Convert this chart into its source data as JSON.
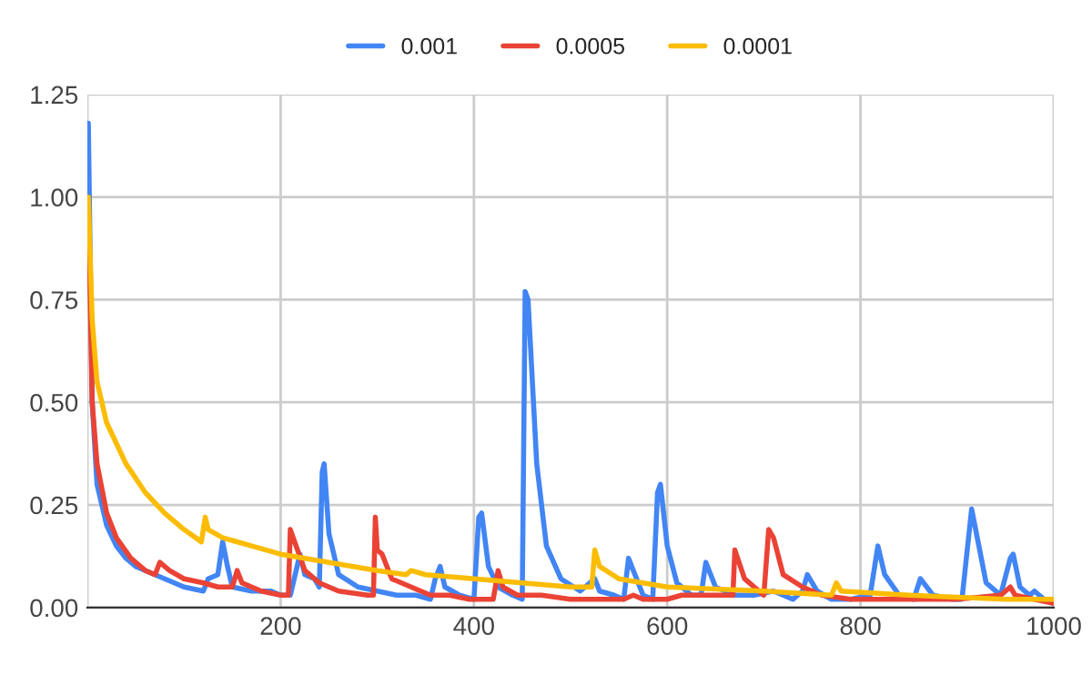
{
  "chart_data": {
    "type": "line",
    "xlim": [
      0,
      1000
    ],
    "ylim": [
      0,
      1.25
    ],
    "xticks": [
      {
        "value": 0,
        "label": null
      },
      200,
      400,
      600,
      800,
      1000
    ],
    "yticks": [
      {
        "value": 0,
        "label": "0.00"
      },
      {
        "value": 0.25,
        "label": "0.25"
      },
      {
        "value": 0.5,
        "label": "0.50"
      },
      {
        "value": 0.75,
        "label": "0.75"
      },
      {
        "value": 1,
        "label": "1.00"
      },
      {
        "value": 1.25,
        "label": "1.25"
      }
    ],
    "grid": true,
    "legend": "top",
    "marker": "none",
    "line_style": "solid",
    "series": [
      {
        "name": "0.001",
        "color": "#4285f4",
        "x": [
          1,
          5,
          10,
          20,
          30,
          40,
          50,
          60,
          80,
          100,
          120,
          125,
          135,
          140,
          145,
          150,
          170,
          190,
          200,
          210,
          220,
          225,
          235,
          240,
          243,
          245,
          250,
          260,
          280,
          300,
          320,
          340,
          355,
          360,
          365,
          370,
          385,
          400,
          405,
          408,
          415,
          425,
          440,
          450,
          453,
          456,
          465,
          475,
          490,
          510,
          525,
          530,
          545,
          555,
          560,
          565,
          575,
          585,
          590,
          593,
          600,
          610,
          625,
          635,
          640,
          650,
          670,
          690,
          710,
          720,
          730,
          740,
          745,
          755,
          770,
          790,
          810,
          818,
          825,
          840,
          855,
          862,
          875,
          895,
          905,
          915,
          920,
          930,
          945,
          955,
          958,
          965,
          975,
          980,
          990,
          1000
        ],
        "values": [
          1.18,
          0.5,
          0.3,
          0.2,
          0.15,
          0.12,
          0.1,
          0.09,
          0.07,
          0.05,
          0.04,
          0.07,
          0.08,
          0.16,
          0.1,
          0.05,
          0.04,
          0.04,
          0.03,
          0.03,
          0.13,
          0.08,
          0.07,
          0.05,
          0.33,
          0.35,
          0.18,
          0.08,
          0.05,
          0.04,
          0.03,
          0.03,
          0.02,
          0.07,
          0.1,
          0.05,
          0.03,
          0.02,
          0.22,
          0.23,
          0.1,
          0.05,
          0.03,
          0.02,
          0.77,
          0.75,
          0.35,
          0.15,
          0.07,
          0.04,
          0.07,
          0.04,
          0.03,
          0.02,
          0.12,
          0.09,
          0.03,
          0.02,
          0.28,
          0.3,
          0.15,
          0.06,
          0.03,
          0.03,
          0.11,
          0.05,
          0.03,
          0.03,
          0.04,
          0.03,
          0.02,
          0.04,
          0.08,
          0.04,
          0.02,
          0.02,
          0.03,
          0.15,
          0.08,
          0.03,
          0.02,
          0.07,
          0.03,
          0.02,
          0.02,
          0.24,
          0.18,
          0.06,
          0.03,
          0.12,
          0.13,
          0.05,
          0.03,
          0.04,
          0.02,
          0.01
        ]
      },
      {
        "name": "0.0005",
        "color": "#ea4335",
        "x": [
          1,
          5,
          10,
          20,
          30,
          45,
          60,
          70,
          75,
          85,
          100,
          120,
          135,
          150,
          155,
          160,
          180,
          200,
          208,
          210,
          213,
          225,
          240,
          260,
          290,
          296,
          298,
          300,
          305,
          315,
          335,
          355,
          375,
          395,
          420,
          425,
          430,
          445,
          470,
          500,
          530,
          555,
          565,
          575,
          600,
          615,
          630,
          668,
          670,
          680,
          700,
          705,
          710,
          720,
          740,
          760,
          790,
          820,
          850,
          900,
          945,
          955,
          960,
          1000
        ],
        "values": [
          1.0,
          0.5,
          0.35,
          0.23,
          0.17,
          0.12,
          0.09,
          0.08,
          0.11,
          0.09,
          0.07,
          0.06,
          0.05,
          0.05,
          0.09,
          0.06,
          0.04,
          0.03,
          0.03,
          0.19,
          0.17,
          0.09,
          0.06,
          0.04,
          0.03,
          0.03,
          0.22,
          0.14,
          0.13,
          0.07,
          0.05,
          0.03,
          0.03,
          0.02,
          0.02,
          0.09,
          0.05,
          0.03,
          0.03,
          0.02,
          0.02,
          0.02,
          0.03,
          0.02,
          0.02,
          0.03,
          0.03,
          0.03,
          0.14,
          0.07,
          0.03,
          0.19,
          0.17,
          0.08,
          0.05,
          0.03,
          0.02,
          0.02,
          0.02,
          0.02,
          0.03,
          0.05,
          0.03,
          0.01
        ]
      },
      {
        "name": "0.0001",
        "color": "#fbbc04",
        "x": [
          1,
          5,
          10,
          20,
          40,
          60,
          80,
          100,
          118,
          122,
          125,
          140,
          170,
          200,
          250,
          300,
          330,
          335,
          350,
          400,
          450,
          500,
          522,
          525,
          530,
          550,
          600,
          650,
          700,
          770,
          775,
          780,
          850,
          900,
          950,
          1000
        ],
        "values": [
          1.0,
          0.7,
          0.55,
          0.45,
          0.35,
          0.28,
          0.23,
          0.19,
          0.16,
          0.22,
          0.19,
          0.17,
          0.15,
          0.13,
          0.11,
          0.09,
          0.08,
          0.09,
          0.08,
          0.07,
          0.06,
          0.05,
          0.05,
          0.14,
          0.1,
          0.07,
          0.05,
          0.045,
          0.04,
          0.03,
          0.06,
          0.04,
          0.03,
          0.025,
          0.02,
          0.02
        ]
      }
    ]
  }
}
